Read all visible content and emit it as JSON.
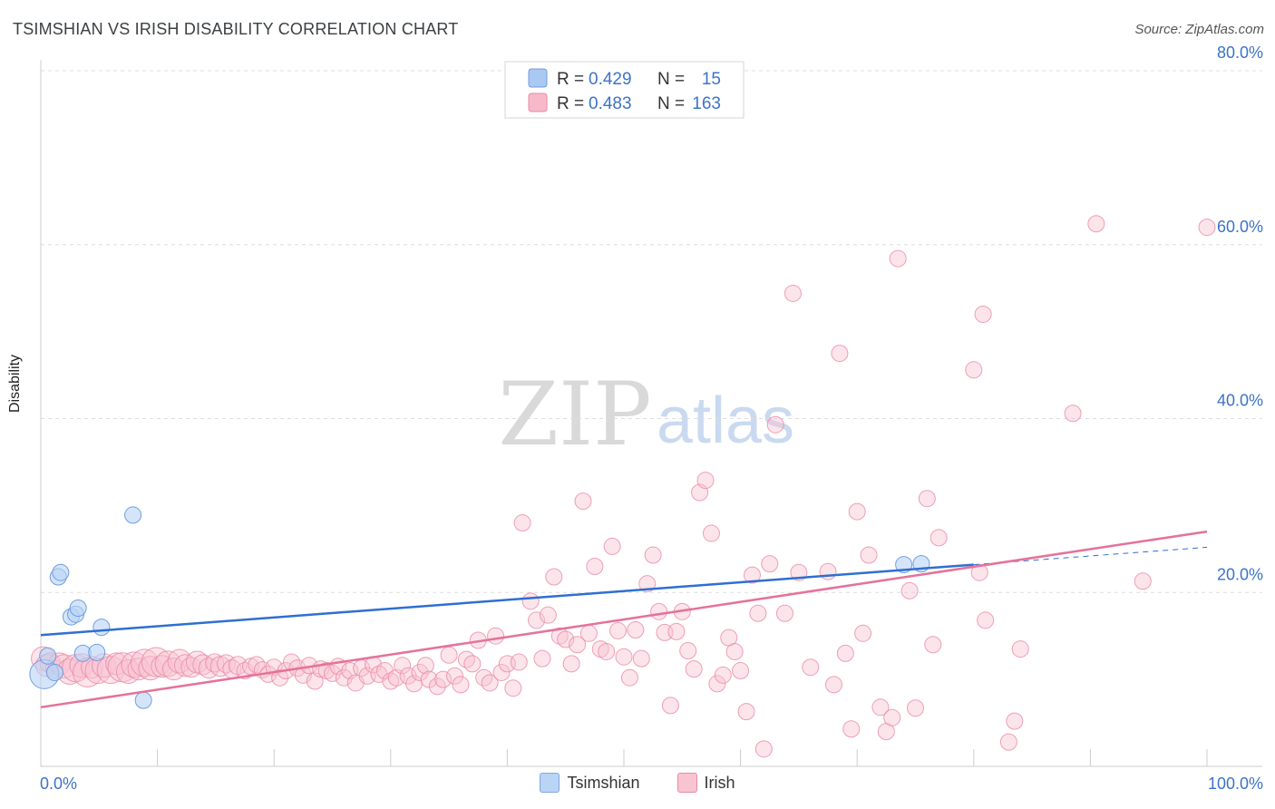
{
  "title": "TSIMSHIAN VS IRISH DISABILITY CORRELATION CHART",
  "source": "Source: ZipAtlas.com",
  "watermark": {
    "zip": "ZIP",
    "atlas": "atlas"
  },
  "legend_box": {
    "rows": [
      {
        "r_label": "R = ",
        "r_value": "0.429",
        "n_label": "N = ",
        "n_value": "15",
        "color": "#a9c8f2",
        "stroke": "#6f9ee0"
      },
      {
        "r_label": "R = ",
        "r_value": "0.483",
        "n_label": "N = ",
        "n_value": "163",
        "color": "#f7b9ca",
        "stroke": "#e98aa5"
      }
    ]
  },
  "bottom_legend": [
    {
      "label": "Tsimshian",
      "color": "#b9d4f5",
      "stroke": "#7ea7e0"
    },
    {
      "label": "Irish",
      "color": "#f9c4d2",
      "stroke": "#e98aa5"
    }
  ],
  "chart_data": {
    "type": "scatter",
    "xlabel": "",
    "ylabel": "Disability",
    "xlim": [
      0,
      100
    ],
    "ylim": [
      0,
      80
    ],
    "x_tick_labels": [
      "0.0%",
      "100.0%"
    ],
    "y_tick_labels": [
      "20.0%",
      "40.0%",
      "60.0%",
      "80.0%"
    ],
    "y_ticks": [
      20,
      40,
      60,
      80
    ],
    "grid": "horizontal dashed",
    "legend_placement": "top-center",
    "series": [
      {
        "name": "Tsimshian",
        "color": "#6f9ee0",
        "fill": "#b9d4f5",
        "trend": {
          "x": [
            0,
            80
          ],
          "y": [
            15.1,
            23.2
          ],
          "dashed_to": [
            100,
            25.2
          ],
          "color": "#2f6fd0"
        },
        "points": [
          [
            0.3,
            10.6,
            16
          ],
          [
            0.6,
            12.7,
            9
          ],
          [
            1.2,
            10.8,
            9
          ],
          [
            1.5,
            21.8,
            9
          ],
          [
            1.7,
            22.3,
            9
          ],
          [
            2.6,
            17.2,
            9
          ],
          [
            3.0,
            17.5,
            9
          ],
          [
            3.2,
            18.2,
            9
          ],
          [
            3.6,
            13.0,
            9
          ],
          [
            4.8,
            13.1,
            9
          ],
          [
            5.2,
            16.0,
            9
          ],
          [
            7.9,
            28.9,
            9
          ],
          [
            8.8,
            7.6,
            9
          ],
          [
            74.0,
            23.2,
            9
          ],
          [
            75.5,
            23.3,
            9
          ]
        ]
      },
      {
        "name": "Irish",
        "color": "#e98aa5",
        "fill": "#f9c4d2",
        "trend": {
          "x": [
            0,
            100
          ],
          "y": [
            6.8,
            27.0
          ],
          "color": "#e5729a"
        },
        "points": [
          [
            0.2,
            12.4,
            13
          ],
          [
            0.5,
            11.6,
            12
          ],
          [
            0.8,
            11.9,
            11
          ],
          [
            1.2,
            11.2,
            10
          ],
          [
            1.6,
            11.8,
            12
          ],
          [
            2.0,
            11.5,
            13
          ],
          [
            2.5,
            10.9,
            14
          ],
          [
            3.0,
            11.3,
            15
          ],
          [
            3.5,
            11.6,
            13
          ],
          [
            4.0,
            10.8,
            16
          ],
          [
            4.4,
            11.4,
            12
          ],
          [
            4.9,
            11.0,
            14
          ],
          [
            5.4,
            11.6,
            13
          ],
          [
            6.0,
            11.1,
            15
          ],
          [
            6.5,
            11.8,
            12
          ],
          [
            7.0,
            11.4,
            16
          ],
          [
            7.5,
            10.9,
            13
          ],
          [
            8.0,
            11.7,
            14
          ],
          [
            8.4,
            11.2,
            12
          ],
          [
            8.9,
            11.9,
            15
          ],
          [
            9.4,
            11.3,
            13
          ],
          [
            9.9,
            12.0,
            16
          ],
          [
            10.4,
            11.5,
            12
          ],
          [
            10.9,
            11.8,
            14
          ],
          [
            11.4,
            11.2,
            12
          ],
          [
            11.9,
            12.1,
            13
          ],
          [
            12.4,
            11.6,
            12
          ],
          [
            12.9,
            11.4,
            11
          ],
          [
            13.4,
            12.0,
            12
          ],
          [
            13.9,
            11.7,
            11
          ],
          [
            14.4,
            11.3,
            11
          ],
          [
            14.9,
            11.9,
            10
          ],
          [
            15.4,
            11.5,
            11
          ],
          [
            15.9,
            11.8,
            10
          ],
          [
            16.4,
            11.2,
            10
          ],
          [
            16.9,
            11.6,
            10
          ],
          [
            17.5,
            11.0,
            9
          ],
          [
            18.0,
            11.5,
            9
          ],
          [
            18.5,
            11.7,
            9
          ],
          [
            19.0,
            11.1,
            9
          ],
          [
            19.5,
            10.6,
            9
          ],
          [
            20.0,
            11.4,
            9
          ],
          [
            20.5,
            10.2,
            9
          ],
          [
            21.0,
            11.0,
            9
          ],
          [
            21.5,
            12.0,
            9
          ],
          [
            22.0,
            11.3,
            9
          ],
          [
            22.5,
            10.5,
            9
          ],
          [
            23.0,
            11.6,
            9
          ],
          [
            23.5,
            9.8,
            9
          ],
          [
            24.0,
            11.2,
            9
          ],
          [
            24.5,
            11.0,
            9
          ],
          [
            25.0,
            10.7,
            9
          ],
          [
            25.5,
            11.5,
            9
          ],
          [
            26.0,
            10.2,
            9
          ],
          [
            26.5,
            11.0,
            9
          ],
          [
            27.0,
            9.6,
            9
          ],
          [
            27.5,
            11.3,
            9
          ],
          [
            28.0,
            10.4,
            9
          ],
          [
            28.5,
            11.7,
            9
          ],
          [
            29.0,
            10.6,
            9
          ],
          [
            29.5,
            11.0,
            9
          ],
          [
            30.0,
            9.8,
            9
          ],
          [
            30.5,
            10.2,
            9
          ],
          [
            31.0,
            11.6,
            9
          ],
          [
            31.5,
            10.4,
            9
          ],
          [
            32.0,
            9.5,
            9
          ],
          [
            32.5,
            10.8,
            9
          ],
          [
            33.0,
            11.6,
            9
          ],
          [
            33.3,
            10.0,
            9
          ],
          [
            34.0,
            9.2,
            9
          ],
          [
            34.5,
            10.0,
            9
          ],
          [
            35.0,
            12.8,
            9
          ],
          [
            35.5,
            10.4,
            9
          ],
          [
            36.0,
            9.4,
            9
          ],
          [
            36.5,
            12.3,
            9
          ],
          [
            37.0,
            11.8,
            9
          ],
          [
            37.5,
            14.5,
            9
          ],
          [
            38.0,
            10.2,
            9
          ],
          [
            38.5,
            9.6,
            9
          ],
          [
            39.0,
            15.0,
            9
          ],
          [
            39.5,
            10.8,
            9
          ],
          [
            40.0,
            11.8,
            9
          ],
          [
            40.5,
            9.0,
            9
          ],
          [
            41.0,
            12.0,
            9
          ],
          [
            41.3,
            28.0,
            9
          ],
          [
            42.0,
            19.0,
            9
          ],
          [
            42.5,
            16.8,
            9
          ],
          [
            43.0,
            12.4,
            9
          ],
          [
            43.5,
            17.4,
            9
          ],
          [
            44.0,
            21.8,
            9
          ],
          [
            44.5,
            15.0,
            9
          ],
          [
            45.0,
            14.6,
            9
          ],
          [
            45.5,
            11.8,
            9
          ],
          [
            46.0,
            14.0,
            9
          ],
          [
            46.5,
            30.5,
            9
          ],
          [
            47.0,
            15.3,
            9
          ],
          [
            47.5,
            23.0,
            9
          ],
          [
            48.0,
            13.5,
            9
          ],
          [
            48.5,
            13.2,
            9
          ],
          [
            49.0,
            25.3,
            9
          ],
          [
            49.5,
            15.6,
            9
          ],
          [
            50.0,
            12.6,
            9
          ],
          [
            50.5,
            10.2,
            9
          ],
          [
            51.0,
            15.7,
            9
          ],
          [
            51.5,
            12.4,
            9
          ],
          [
            52.0,
            21.0,
            9
          ],
          [
            52.5,
            24.3,
            9
          ],
          [
            53.0,
            17.8,
            9
          ],
          [
            53.5,
            15.4,
            9
          ],
          [
            54.0,
            7.0,
            9
          ],
          [
            54.5,
            15.5,
            9
          ],
          [
            55.0,
            17.8,
            9
          ],
          [
            55.5,
            13.3,
            9
          ],
          [
            56.0,
            11.2,
            9
          ],
          [
            56.5,
            31.5,
            9
          ],
          [
            57.0,
            32.9,
            9
          ],
          [
            57.5,
            26.8,
            9
          ],
          [
            58.0,
            9.5,
            9
          ],
          [
            58.5,
            10.5,
            9
          ],
          [
            59.0,
            14.8,
            9
          ],
          [
            59.5,
            13.2,
            9
          ],
          [
            60.0,
            11.0,
            9
          ],
          [
            60.5,
            6.3,
            9
          ],
          [
            61.0,
            22.0,
            9
          ],
          [
            61.5,
            17.6,
            9
          ],
          [
            62.0,
            2.0,
            9
          ],
          [
            62.5,
            23.3,
            9
          ],
          [
            63.0,
            39.3,
            9
          ],
          [
            63.8,
            17.6,
            9
          ],
          [
            64.5,
            54.4,
            9
          ],
          [
            65.0,
            22.3,
            9
          ],
          [
            66.0,
            11.4,
            9
          ],
          [
            67.5,
            22.4,
            9
          ],
          [
            68.0,
            9.4,
            9
          ],
          [
            68.5,
            47.5,
            9
          ],
          [
            69.0,
            13.0,
            9
          ],
          [
            69.5,
            4.3,
            9
          ],
          [
            70.0,
            29.3,
            9
          ],
          [
            70.5,
            15.3,
            9
          ],
          [
            71.0,
            24.3,
            9
          ],
          [
            72.0,
            6.8,
            9
          ],
          [
            72.5,
            4.0,
            9
          ],
          [
            73.0,
            5.6,
            9
          ],
          [
            73.5,
            58.4,
            9
          ],
          [
            74.5,
            20.2,
            9
          ],
          [
            75.0,
            6.7,
            9
          ],
          [
            76.0,
            30.8,
            9
          ],
          [
            76.5,
            14.0,
            9
          ],
          [
            77.0,
            26.3,
            9
          ],
          [
            80.5,
            22.3,
            9
          ],
          [
            80.8,
            52.0,
            9
          ],
          [
            81.0,
            16.8,
            9
          ],
          [
            80.0,
            45.6,
            9
          ],
          [
            83.0,
            2.8,
            9
          ],
          [
            83.5,
            5.2,
            9
          ],
          [
            84.0,
            13.5,
            9
          ],
          [
            88.5,
            40.6,
            9
          ],
          [
            90.5,
            62.4,
            9
          ],
          [
            94.5,
            21.3,
            9
          ],
          [
            100.0,
            62.0,
            9
          ]
        ]
      }
    ]
  }
}
